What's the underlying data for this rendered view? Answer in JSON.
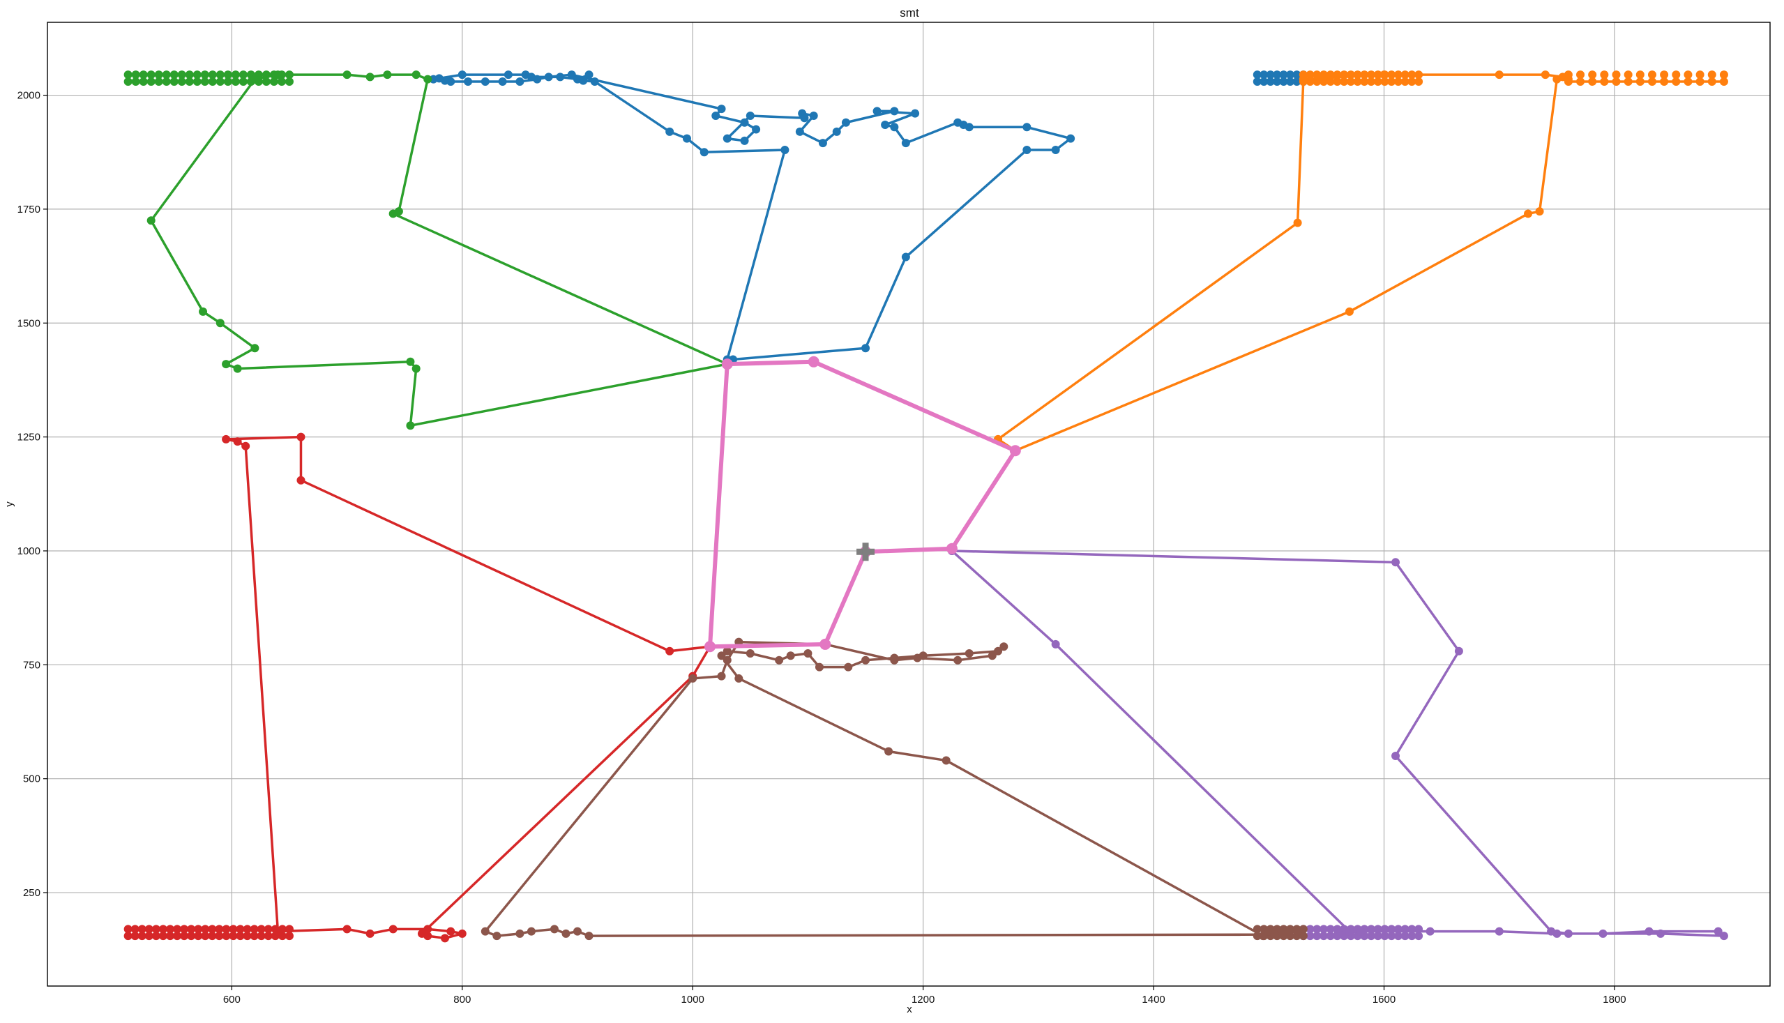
{
  "chart_data": {
    "type": "line",
    "title": "smt",
    "xlabel": "x",
    "ylabel": "y",
    "xlim": [
      440,
      1935
    ],
    "ylim": [
      45,
      2160
    ],
    "xticks": [
      600,
      800,
      1000,
      1200,
      1400,
      1600,
      1800
    ],
    "yticks": [
      250,
      500,
      750,
      1000,
      1250,
      1500,
      1750,
      2000
    ],
    "grid": true,
    "center_marker": {
      "x": 1150,
      "y": 998,
      "color": "#7f7f7f",
      "symbol": "plus"
    },
    "series": [
      {
        "color": "#1f77b4",
        "points": [
          [
            1035,
            1420
          ],
          [
            1150,
            1445
          ],
          [
            1185,
            1645
          ],
          [
            1290,
            1880
          ],
          [
            1315,
            1880
          ],
          [
            1328,
            1905
          ],
          [
            1290,
            1930
          ],
          [
            1240,
            1930
          ],
          [
            1235,
            1935
          ],
          [
            1230,
            1940
          ],
          [
            1185,
            1895
          ],
          [
            1175,
            1930
          ],
          [
            1167,
            1935
          ],
          [
            1193,
            1960
          ],
          [
            1160,
            1965
          ],
          [
            1175,
            1965
          ],
          [
            1133,
            1940
          ],
          [
            1125,
            1920
          ],
          [
            1113,
            1895
          ],
          [
            1093,
            1920
          ],
          [
            1105,
            1955
          ],
          [
            1095,
            1960
          ],
          [
            1097,
            1950
          ],
          [
            1050,
            1955
          ],
          [
            1030,
            1905
          ],
          [
            1045,
            1900
          ],
          [
            1055,
            1925
          ],
          [
            1045,
            1940
          ],
          [
            1020,
            1955
          ],
          [
            1025,
            1970
          ],
          [
            895,
            2045
          ],
          [
            875,
            2040
          ],
          [
            865,
            2035
          ],
          [
            850,
            2030
          ],
          [
            835,
            2030
          ],
          [
            820,
            2030
          ],
          [
            805,
            2030
          ],
          [
            790,
            2030
          ],
          [
            785,
            2032
          ],
          [
            775,
            2035
          ],
          [
            780,
            2037
          ],
          [
            800,
            2045
          ],
          [
            840,
            2045
          ],
          [
            855,
            2045
          ],
          [
            860,
            2040
          ],
          [
            885,
            2040
          ],
          [
            900,
            2035
          ],
          [
            910,
            2045
          ],
          [
            905,
            2032
          ],
          [
            915,
            2030
          ],
          [
            980,
            1920
          ],
          [
            995,
            1905
          ],
          [
            1010,
            1875
          ],
          [
            1080,
            1880
          ],
          [
            1030,
            1420
          ]
        ]
      },
      {
        "color": "#ff7f0e",
        "points": [
          [
            1265,
            1245
          ],
          [
            1525,
            1720
          ],
          [
            1530,
            2035
          ],
          [
            1600,
            2045
          ],
          [
            1700,
            2045
          ],
          [
            1740,
            2045
          ],
          [
            1755,
            2040
          ],
          [
            1760,
            2035
          ],
          [
            1750,
            2035
          ],
          [
            1735,
            1745
          ],
          [
            1725,
            1740
          ],
          [
            1570,
            1525
          ],
          [
            1280,
            1220
          ],
          [
            1265,
            1245
          ]
        ]
      },
      {
        "color": "#2ca02c",
        "points": [
          [
            1030,
            1410
          ],
          [
            755,
            1275
          ],
          [
            760,
            1400
          ],
          [
            755,
            1415
          ],
          [
            605,
            1400
          ],
          [
            595,
            1410
          ],
          [
            620,
            1445
          ],
          [
            590,
            1500
          ],
          [
            575,
            1525
          ],
          [
            530,
            1725
          ],
          [
            620,
            2035
          ],
          [
            640,
            2045
          ],
          [
            700,
            2045
          ],
          [
            720,
            2040
          ],
          [
            735,
            2045
          ],
          [
            760,
            2045
          ],
          [
            770,
            2035
          ],
          [
            745,
            1745
          ],
          [
            740,
            1740
          ],
          [
            1030,
            1410
          ]
        ]
      },
      {
        "color": "#d62728",
        "points": [
          [
            1015,
            790
          ],
          [
            980,
            780
          ],
          [
            660,
            1155
          ],
          [
            660,
            1250
          ],
          [
            595,
            1245
          ],
          [
            605,
            1240
          ],
          [
            612,
            1230
          ],
          [
            640,
            165
          ],
          [
            700,
            170
          ],
          [
            720,
            160
          ],
          [
            740,
            170
          ],
          [
            770,
            170
          ],
          [
            790,
            165
          ],
          [
            800,
            160
          ],
          [
            785,
            150
          ],
          [
            770,
            155
          ],
          [
            765,
            160
          ],
          [
            1000,
            725
          ],
          [
            1015,
            790
          ]
        ]
      },
      {
        "color": "#9467bd",
        "points": [
          [
            1225,
            1000
          ],
          [
            1610,
            975
          ],
          [
            1665,
            780
          ],
          [
            1610,
            550
          ],
          [
            1745,
            165
          ],
          [
            1760,
            160
          ],
          [
            1790,
            160
          ],
          [
            1830,
            165
          ],
          [
            1890,
            165
          ],
          [
            1895,
            155
          ],
          [
            1840,
            160
          ],
          [
            1750,
            160
          ],
          [
            1700,
            165
          ],
          [
            1640,
            165
          ],
          [
            1580,
            165
          ],
          [
            1560,
            160
          ],
          [
            1570,
            165
          ],
          [
            1315,
            795
          ],
          [
            1225,
            1000
          ]
        ]
      },
      {
        "color": "#8c564b",
        "points": [
          [
            1115,
            795
          ],
          [
            1175,
            760
          ],
          [
            1195,
            765
          ],
          [
            1230,
            760
          ],
          [
            1260,
            770
          ],
          [
            1270,
            790
          ],
          [
            1265,
            780
          ],
          [
            1240,
            775
          ],
          [
            1200,
            770
          ],
          [
            1175,
            765
          ],
          [
            1150,
            760
          ],
          [
            1135,
            745
          ],
          [
            1110,
            745
          ],
          [
            1100,
            775
          ],
          [
            1085,
            770
          ],
          [
            1075,
            760
          ],
          [
            1050,
            775
          ],
          [
            1030,
            780
          ],
          [
            1025,
            770
          ],
          [
            1040,
            720
          ],
          [
            1170,
            560
          ],
          [
            1220,
            540
          ],
          [
            1495,
            155
          ],
          [
            1500,
            165
          ],
          [
            1525,
            165
          ],
          [
            1505,
            158
          ],
          [
            910,
            155
          ],
          [
            900,
            165
          ],
          [
            890,
            160
          ],
          [
            880,
            170
          ],
          [
            860,
            165
          ],
          [
            850,
            160
          ],
          [
            830,
            155
          ],
          [
            820,
            165
          ],
          [
            1000,
            720
          ],
          [
            1025,
            725
          ],
          [
            1030,
            760
          ],
          [
            1040,
            800
          ],
          [
            1115,
            795
          ]
        ]
      },
      {
        "color": "#e377c2",
        "width": 6,
        "points": [
          [
            1150,
            998
          ],
          [
            1225,
            1005
          ],
          [
            1280,
            1220
          ],
          [
            1105,
            1415
          ],
          [
            1030,
            1410
          ],
          [
            1015,
            790
          ],
          [
            1115,
            795
          ],
          [
            1150,
            998
          ]
        ]
      }
    ],
    "clusters": [
      {
        "color": "#1f77b4",
        "x_from": 1490,
        "x_to": 1530,
        "ys": [
          2030,
          2045
        ],
        "count": 8
      },
      {
        "color": "#ff7f0e",
        "x_from": 1530,
        "x_to": 1630,
        "ys": [
          2030,
          2045
        ],
        "count": 18
      },
      {
        "color": "#ff7f0e",
        "x_from": 1760,
        "x_to": 1895,
        "ys": [
          2030,
          2045
        ],
        "count": 14
      },
      {
        "color": "#2ca02c",
        "x_from": 510,
        "x_to": 650,
        "ys": [
          2030,
          2045
        ],
        "count": 22
      },
      {
        "color": "#d62728",
        "x_from": 510,
        "x_to": 650,
        "ys": [
          155,
          170
        ],
        "count": 24
      },
      {
        "color": "#9467bd",
        "x_from": 1530,
        "x_to": 1630,
        "ys": [
          155,
          170
        ],
        "count": 18
      },
      {
        "color": "#8c564b",
        "x_from": 1490,
        "x_to": 1530,
        "ys": [
          155,
          170
        ],
        "count": 8
      }
    ]
  }
}
